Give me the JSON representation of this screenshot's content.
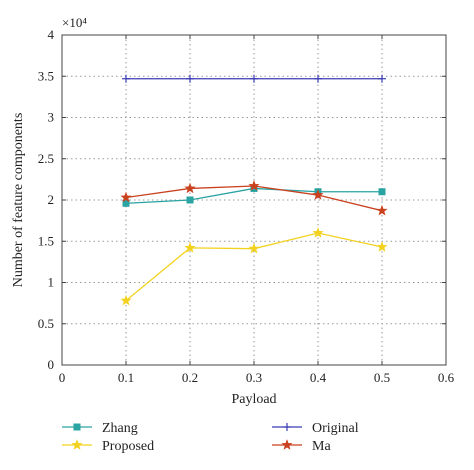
{
  "chart_data": {
    "type": "line",
    "xlabel": "Payload",
    "ylabel": "Number of feature components",
    "y_multiplier_label": "×10⁴",
    "xlim": [
      0,
      0.6
    ],
    "ylim": [
      0,
      4
    ],
    "x_ticks": [
      0,
      0.1,
      0.2,
      0.3,
      0.4,
      0.5,
      0.6
    ],
    "x_tick_labels": [
      "0",
      "0.1",
      "0.2",
      "0.3",
      "0.4",
      "0.5",
      "0.6"
    ],
    "y_ticks": [
      0,
      0.5,
      1,
      1.5,
      2,
      2.5,
      3,
      3.5,
      4
    ],
    "y_tick_labels": [
      "0",
      "0.5",
      "1",
      "1.5",
      "2",
      "2.5",
      "3",
      "3.5",
      "4"
    ],
    "grid": true,
    "legend_position": "bottom",
    "x": [
      0.1,
      0.2,
      0.3,
      0.4,
      0.5
    ],
    "series": [
      {
        "name": "Zhang",
        "color": "#2aa3a3",
        "marker": "square",
        "values": [
          1.96,
          2.0,
          2.14,
          2.1,
          2.1
        ]
      },
      {
        "name": "Proposed",
        "color": "#f2d21e",
        "marker": "star",
        "values": [
          0.78,
          1.42,
          1.41,
          1.6,
          1.43
        ]
      },
      {
        "name": "Original",
        "color": "#3b3bb5",
        "marker": "plus",
        "values": [
          3.47,
          3.47,
          3.47,
          3.47,
          3.47
        ]
      },
      {
        "name": "Ma",
        "color": "#c9411e",
        "marker": "star",
        "values": [
          2.03,
          2.14,
          2.17,
          2.06,
          1.87
        ]
      }
    ]
  }
}
